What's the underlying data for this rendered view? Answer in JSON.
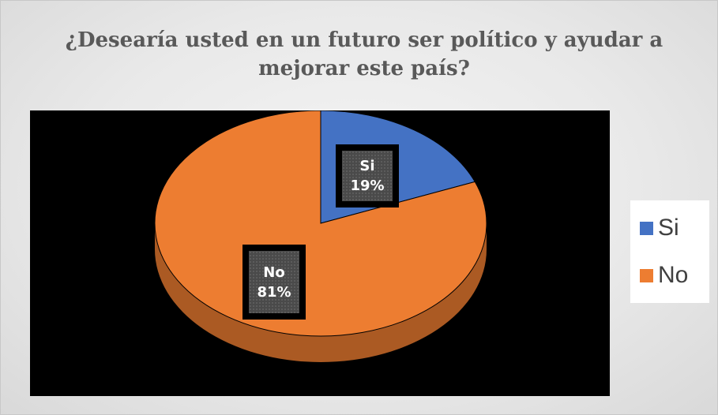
{
  "chart_data": {
    "type": "pie",
    "title": "¿Desearía usted en un futuro ser político y ayudar a mejorar este país?",
    "categories": [
      "Si",
      "No"
    ],
    "values": [
      19,
      81
    ],
    "unit": "%",
    "colors": [
      "#4472c4",
      "#ed7d31"
    ],
    "data_labels": [
      {
        "category": "Si",
        "value": "19%"
      },
      {
        "category": "No",
        "value": "81%"
      }
    ],
    "legend_position": "right",
    "style": "3d-pie"
  }
}
